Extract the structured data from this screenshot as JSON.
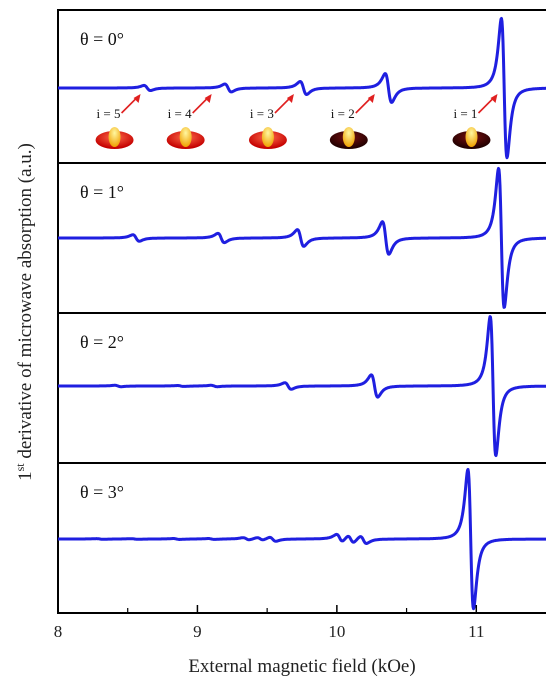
{
  "chart_data": {
    "type": "line",
    "xlabel": "External magnetic field (kOe)",
    "ylabel_main": "1",
    "ylabel_sup": "st",
    "ylabel_rest": " derivative of microwave absorption (a.u.)",
    "xlim": [
      8.0,
      11.5
    ],
    "xticks": [
      8,
      9,
      10,
      11
    ],
    "xtick_labels": [
      "8",
      "9",
      "10",
      "11"
    ],
    "line_color": "#1f1fe0",
    "arrow_color": "#e02020",
    "panels": [
      {
        "label": "θ = 0°",
        "baseline": 0,
        "resonances": [
          {
            "center": 8.64,
            "amplitude": 0.11
          },
          {
            "center": 9.22,
            "amplitude": 0.17
          },
          {
            "center": 9.76,
            "amplitude": 0.28
          },
          {
            "center": 10.37,
            "amplitude": 0.62
          },
          {
            "center": 11.2,
            "amplitude": 3.0
          }
        ],
        "mode_labels": [
          {
            "text": "i = 5",
            "field": 8.42
          },
          {
            "text": "i = 4",
            "field": 8.93
          },
          {
            "text": "i = 3",
            "field": 9.52
          },
          {
            "text": "i = 2",
            "field": 10.1
          },
          {
            "text": "i = 1",
            "field": 10.98
          }
        ]
      },
      {
        "label": "θ = 1°",
        "baseline": 0,
        "resonances": [
          {
            "center": 8.56,
            "amplitude": 0.14
          },
          {
            "center": 9.17,
            "amplitude": 0.2
          },
          {
            "center": 9.74,
            "amplitude": 0.36
          },
          {
            "center": 10.35,
            "amplitude": 0.7
          },
          {
            "center": 11.18,
            "amplitude": 3.0
          }
        ]
      },
      {
        "label": "θ = 2°",
        "baseline": 0,
        "resonances": [
          {
            "center": 8.43,
            "amplitude": 0.03
          },
          {
            "center": 8.88,
            "amplitude": 0.02
          },
          {
            "center": 9.12,
            "amplitude": 0.03
          },
          {
            "center": 9.65,
            "amplitude": 0.14
          },
          {
            "center": 10.27,
            "amplitude": 0.48
          },
          {
            "center": 11.12,
            "amplitude": 3.0
          }
        ]
      },
      {
        "label": "θ = 3°",
        "baseline": 0,
        "resonances": [
          {
            "center": 8.3,
            "amplitude": 0.015
          },
          {
            "center": 8.55,
            "amplitude": 0.015
          },
          {
            "center": 8.85,
            "amplitude": 0.02
          },
          {
            "center": 9.1,
            "amplitude": 0.02
          },
          {
            "center": 9.35,
            "amplitude": 0.05
          },
          {
            "center": 9.45,
            "amplitude": 0.06
          },
          {
            "center": 9.54,
            "amplitude": 0.09
          },
          {
            "center": 10.02,
            "amplitude": 0.17
          },
          {
            "center": 10.1,
            "amplitude": 0.17
          },
          {
            "center": 10.19,
            "amplitude": 0.17
          },
          {
            "center": 10.96,
            "amplitude": 3.0
          }
        ]
      }
    ]
  }
}
